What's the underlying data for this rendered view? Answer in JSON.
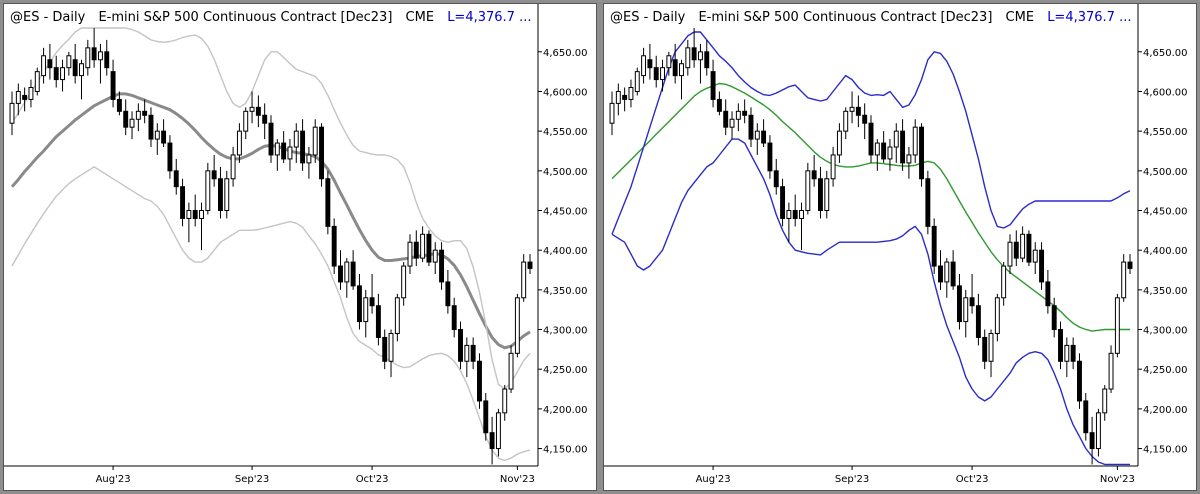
{
  "panels": [
    {
      "symbol": "@ES - Daily",
      "name": "E-mini S&P 500 Continuous Contract [Dec23]",
      "exchange": "CME",
      "last": "L=4,376.7 ..."
    },
    {
      "symbol": "@ES - Daily",
      "name": "E-mini S&P 500 Continuous Contract [Dec23]",
      "exchange": "CME",
      "last": "L=4,376.7 ..."
    }
  ],
  "chart_data": [
    {
      "type": "candlestick",
      "title": "@ES - Daily  E-mini S&P 500 Continuous Contract [Dec23]  CME  L=4,376.7 ...",
      "x_tick_labels": [
        "Aug'23",
        "Sep'23",
        "Oct'23",
        "Nov'23"
      ],
      "x_tick_index": [
        16,
        38,
        57,
        80
      ],
      "y_tick_labels": [
        "4,150.00",
        "4,200.00",
        "4,250.00",
        "4,300.00",
        "4,350.00",
        "4,400.00",
        "4,450.00",
        "4,500.00",
        "4,550.00",
        "4,600.00",
        "4,650.00"
      ],
      "y_ticks": [
        4150,
        4200,
        4250,
        4300,
        4350,
        4400,
        4450,
        4500,
        4550,
        4600,
        4650
      ],
      "ylim": [
        4128,
        4680
      ],
      "grid": false,
      "ohlc": [
        [
          4560,
          4600,
          4545,
          4585
        ],
        [
          4585,
          4610,
          4570,
          4600
        ],
        [
          4595,
          4605,
          4575,
          4590
        ],
        [
          4590,
          4615,
          4580,
          4605
        ],
        [
          4600,
          4630,
          4595,
          4625
        ],
        [
          4620,
          4655,
          4610,
          4645
        ],
        [
          4640,
          4660,
          4615,
          4630
        ],
        [
          4630,
          4645,
          4605,
          4615
        ],
        [
          4615,
          4640,
          4600,
          4630
        ],
        [
          4630,
          4650,
          4620,
          4645
        ],
        [
          4640,
          4660,
          4610,
          4620
        ],
        [
          4620,
          4640,
          4590,
          4635
        ],
        [
          4630,
          4665,
          4620,
          4655
        ],
        [
          4655,
          4680,
          4630,
          4640
        ],
        [
          4640,
          4660,
          4610,
          4650
        ],
        [
          4650,
          4665,
          4620,
          4630
        ],
        [
          4625,
          4640,
          4580,
          4590
        ],
        [
          4590,
          4600,
          4570,
          4575
        ],
        [
          4575,
          4590,
          4545,
          4555
        ],
        [
          4555,
          4575,
          4540,
          4565
        ],
        [
          4565,
          4585,
          4550,
          4575
        ],
        [
          4575,
          4590,
          4560,
          4570
        ],
        [
          4570,
          4580,
          4530,
          4540
        ],
        [
          4540,
          4560,
          4520,
          4550
        ],
        [
          4550,
          4565,
          4530,
          4535
        ],
        [
          4535,
          4545,
          4490,
          4500
        ],
        [
          4500,
          4515,
          4470,
          4480
        ],
        [
          4480,
          4490,
          4430,
          4440
        ],
        [
          4440,
          4460,
          4410,
          4450
        ],
        [
          4450,
          4470,
          4430,
          4440
        ],
        [
          4440,
          4460,
          4400,
          4450
        ],
        [
          4450,
          4510,
          4445,
          4500
        ],
        [
          4500,
          4520,
          4480,
          4490
        ],
        [
          4490,
          4505,
          4440,
          4450
        ],
        [
          4450,
          4500,
          4440,
          4490
        ],
        [
          4490,
          4530,
          4480,
          4520
        ],
        [
          4520,
          4560,
          4510,
          4550
        ],
        [
          4550,
          4580,
          4540,
          4575
        ],
        [
          4575,
          4600,
          4560,
          4580
        ],
        [
          4580,
          4595,
          4555,
          4570
        ],
        [
          4570,
          4585,
          4540,
          4560
        ],
        [
          4560,
          4570,
          4510,
          4520
        ],
        [
          4520,
          4540,
          4500,
          4535
        ],
        [
          4535,
          4550,
          4510,
          4515
        ],
        [
          4515,
          4540,
          4500,
          4530
        ],
        [
          4530,
          4560,
          4510,
          4550
        ],
        [
          4550,
          4565,
          4500,
          4510
        ],
        [
          4510,
          4530,
          4490,
          4520
        ],
        [
          4520,
          4565,
          4510,
          4555
        ],
        [
          4555,
          4560,
          4480,
          4490
        ],
        [
          4490,
          4500,
          4420,
          4430
        ],
        [
          4430,
          4440,
          4370,
          4380
        ],
        [
          4380,
          4400,
          4350,
          4360
        ],
        [
          4360,
          4390,
          4340,
          4385
        ],
        [
          4385,
          4400,
          4350,
          4355
        ],
        [
          4355,
          4370,
          4300,
          4310
        ],
        [
          4310,
          4350,
          4290,
          4340
        ],
        [
          4340,
          4370,
          4320,
          4330
        ],
        [
          4330,
          4345,
          4280,
          4290
        ],
        [
          4290,
          4300,
          4250,
          4260
        ],
        [
          4260,
          4300,
          4240,
          4295
        ],
        [
          4295,
          4345,
          4285,
          4340
        ],
        [
          4340,
          4385,
          4330,
          4380
        ],
        [
          4380,
          4420,
          4370,
          4410
        ],
        [
          4410,
          4425,
          4380,
          4390
        ],
        [
          4390,
          4430,
          4385,
          4420
        ],
        [
          4420,
          4425,
          4380,
          4385
        ],
        [
          4385,
          4410,
          4370,
          4400
        ],
        [
          4400,
          4410,
          4350,
          4360
        ],
        [
          4360,
          4375,
          4320,
          4330
        ],
        [
          4330,
          4340,
          4290,
          4300
        ],
        [
          4300,
          4310,
          4250,
          4260
        ],
        [
          4260,
          4290,
          4240,
          4280
        ],
        [
          4280,
          4290,
          4250,
          4260
        ],
        [
          4260,
          4270,
          4200,
          4210
        ],
        [
          4210,
          4220,
          4160,
          4170
        ],
        [
          4170,
          4190,
          4130,
          4150
        ],
        [
          4150,
          4200,
          4140,
          4195
        ],
        [
          4195,
          4230,
          4185,
          4225
        ],
        [
          4225,
          4280,
          4220,
          4270
        ],
        [
          4270,
          4345,
          4265,
          4340
        ],
        [
          4340,
          4395,
          4335,
          4385
        ],
        [
          4385,
          4395,
          4370,
          4377
        ]
      ],
      "overlays": [
        {
          "kind": "moving-average",
          "color": "#8a8a8a",
          "values": [
            4480,
            4489,
            4499,
            4508,
            4517,
            4525,
            4534,
            4543,
            4550,
            4557,
            4564,
            4570,
            4576,
            4582,
            4586,
            4590,
            4594,
            4597,
            4597,
            4595,
            4592,
            4589,
            4586,
            4583,
            4580,
            4577,
            4572,
            4566,
            4559,
            4551,
            4542,
            4534,
            4527,
            4521,
            4517,
            4515,
            4515,
            4518,
            4522,
            4527,
            4531,
            4532,
            4531,
            4528,
            4525,
            4523,
            4522,
            4520,
            4518,
            4512,
            4502,
            4488,
            4472,
            4457,
            4441,
            4426,
            4412,
            4400,
            4391,
            4387,
            4387,
            4388,
            4389,
            4390,
            4392,
            4393,
            4394,
            4396,
            4394,
            4389,
            4381,
            4369,
            4354,
            4337,
            4320,
            4304,
            4290,
            4281,
            4277,
            4279,
            4285,
            4292,
            4297
          ]
        },
        {
          "kind": "upper-band",
          "color": "#c4c4c4",
          "values": [
            4560,
            4573,
            4586,
            4599,
            4612,
            4624,
            4637,
            4649,
            4658,
            4666,
            4675,
            4680,
            4680,
            4680,
            4680,
            4680,
            4680,
            4680,
            4680,
            4678,
            4675,
            4670,
            4665,
            4663,
            4662,
            4663,
            4665,
            4668,
            4670,
            4671,
            4667,
            4657,
            4641,
            4620,
            4600,
            4585,
            4580,
            4585,
            4600,
            4620,
            4640,
            4650,
            4650,
            4643,
            4635,
            4628,
            4625,
            4622,
            4619,
            4610,
            4595,
            4577,
            4560,
            4545,
            4532,
            4525,
            4523,
            4521,
            4520,
            4520,
            4518,
            4514,
            4505,
            4485,
            4460,
            4440,
            4428,
            4418,
            4412,
            4410,
            4412,
            4412,
            4402,
            4379,
            4347,
            4307,
            4262,
            4231,
            4225,
            4233,
            4247,
            4261,
            4270
          ]
        },
        {
          "kind": "lower-band",
          "color": "#c4c4c4",
          "values": [
            4380,
            4394,
            4408,
            4421,
            4434,
            4446,
            4457,
            4468,
            4476,
            4484,
            4490,
            4495,
            4500,
            4505,
            4500,
            4495,
            4490,
            4485,
            4480,
            4475,
            4470,
            4465,
            4462,
            4455,
            4445,
            4430,
            4415,
            4400,
            4390,
            4385,
            4385,
            4390,
            4400,
            4410,
            4415,
            4420,
            4425,
            4425,
            4425,
            4426,
            4428,
            4430,
            4432,
            4434,
            4436,
            4434,
            4429,
            4418,
            4408,
            4395,
            4380,
            4360,
            4340,
            4315,
            4295,
            4285,
            4280,
            4275,
            4268,
            4265,
            4260,
            4255,
            4252,
            4253,
            4258,
            4263,
            4267,
            4269,
            4270,
            4267,
            4260,
            4248,
            4232,
            4211,
            4188,
            4165,
            4148,
            4138,
            4135,
            4138,
            4143,
            4146,
            4148
          ]
        }
      ]
    },
    {
      "type": "candlestick",
      "title": "@ES - Daily  E-mini S&P 500 Continuous Contract [Dec23]  CME  L=4,376.7 ...",
      "x_tick_labels": [
        "Aug'23",
        "Sep'23",
        "Oct'23",
        "Nov'23"
      ],
      "x_tick_index": [
        16,
        38,
        57,
        80
      ],
      "y_tick_labels": [
        "4,150.00",
        "4,200.00",
        "4,250.00",
        "4,300.00",
        "4,350.00",
        "4,400.00",
        "4,450.00",
        "4,500.00",
        "4,550.00",
        "4,600.00",
        "4,650.00"
      ],
      "y_ticks": [
        4150,
        4200,
        4250,
        4300,
        4350,
        4400,
        4450,
        4500,
        4550,
        4600,
        4650
      ],
      "ylim": [
        4128,
        4680
      ],
      "grid": false,
      "ohlc_same_as_left": true,
      "overlays": [
        {
          "kind": "middle-band",
          "color": "#2e9a2e",
          "values": [
            4490,
            4498,
            4506,
            4514,
            4522,
            4530,
            4538,
            4546,
            4554,
            4562,
            4570,
            4578,
            4586,
            4594,
            4600,
            4604,
            4607,
            4610,
            4609,
            4606,
            4602,
            4598,
            4593,
            4588,
            4583,
            4577,
            4570,
            4562,
            4555,
            4548,
            4540,
            4532,
            4524,
            4517,
            4512,
            4508,
            4506,
            4505,
            4505,
            4506,
            4508,
            4510,
            4510,
            4509,
            4508,
            4507,
            4506,
            4506,
            4507,
            4510,
            4512,
            4510,
            4502,
            4490,
            4476,
            4462,
            4448,
            4435,
            4422,
            4410,
            4398,
            4388,
            4379,
            4372,
            4366,
            4360,
            4354,
            4348,
            4342,
            4336,
            4330,
            4323,
            4315,
            4308,
            4303,
            4300,
            4298,
            4299,
            4300,
            4300,
            4300,
            4300,
            4300
          ]
        },
        {
          "kind": "upper-band",
          "color": "#2b2bc8",
          "values": [
            4420,
            4440,
            4460,
            4480,
            4505,
            4530,
            4555,
            4580,
            4605,
            4630,
            4650,
            4660,
            4670,
            4675,
            4675,
            4665,
            4655,
            4645,
            4638,
            4630,
            4620,
            4612,
            4605,
            4600,
            4596,
            4595,
            4598,
            4602,
            4606,
            4608,
            4600,
            4592,
            4590,
            4588,
            4590,
            4600,
            4610,
            4620,
            4615,
            4605,
            4598,
            4595,
            4596,
            4595,
            4600,
            4590,
            4580,
            4583,
            4596,
            4615,
            4640,
            4650,
            4648,
            4638,
            4622,
            4600,
            4575,
            4545,
            4515,
            4480,
            4450,
            4430,
            4428,
            4432,
            4442,
            4452,
            4458,
            4462,
            4462,
            4462,
            4462,
            4462,
            4462,
            4462,
            4462,
            4462,
            4462,
            4462,
            4462,
            4462,
            4466,
            4471,
            4475
          ]
        },
        {
          "kind": "lower-band",
          "color": "#2b2bc8",
          "values": [
            4420,
            4415,
            4410,
            4395,
            4380,
            4375,
            4380,
            4390,
            4400,
            4420,
            4440,
            4460,
            4475,
            4485,
            4495,
            4505,
            4510,
            4520,
            4530,
            4540,
            4540,
            4535,
            4520,
            4505,
            4490,
            4470,
            4445,
            4425,
            4410,
            4400,
            4398,
            4396,
            4395,
            4394,
            4400,
            4405,
            4410,
            4410,
            4410,
            4410,
            4410,
            4410,
            4410,
            4411,
            4412,
            4414,
            4418,
            4425,
            4430,
            4420,
            4395,
            4360,
            4330,
            4305,
            4285,
            4265,
            4240,
            4225,
            4215,
            4210,
            4215,
            4225,
            4235,
            4245,
            4258,
            4265,
            4270,
            4272,
            4270,
            4262,
            4245,
            4225,
            4200,
            4180,
            4165,
            4150,
            4140,
            4133,
            4130,
            4130,
            4130,
            4130,
            4130
          ]
        }
      ]
    }
  ]
}
